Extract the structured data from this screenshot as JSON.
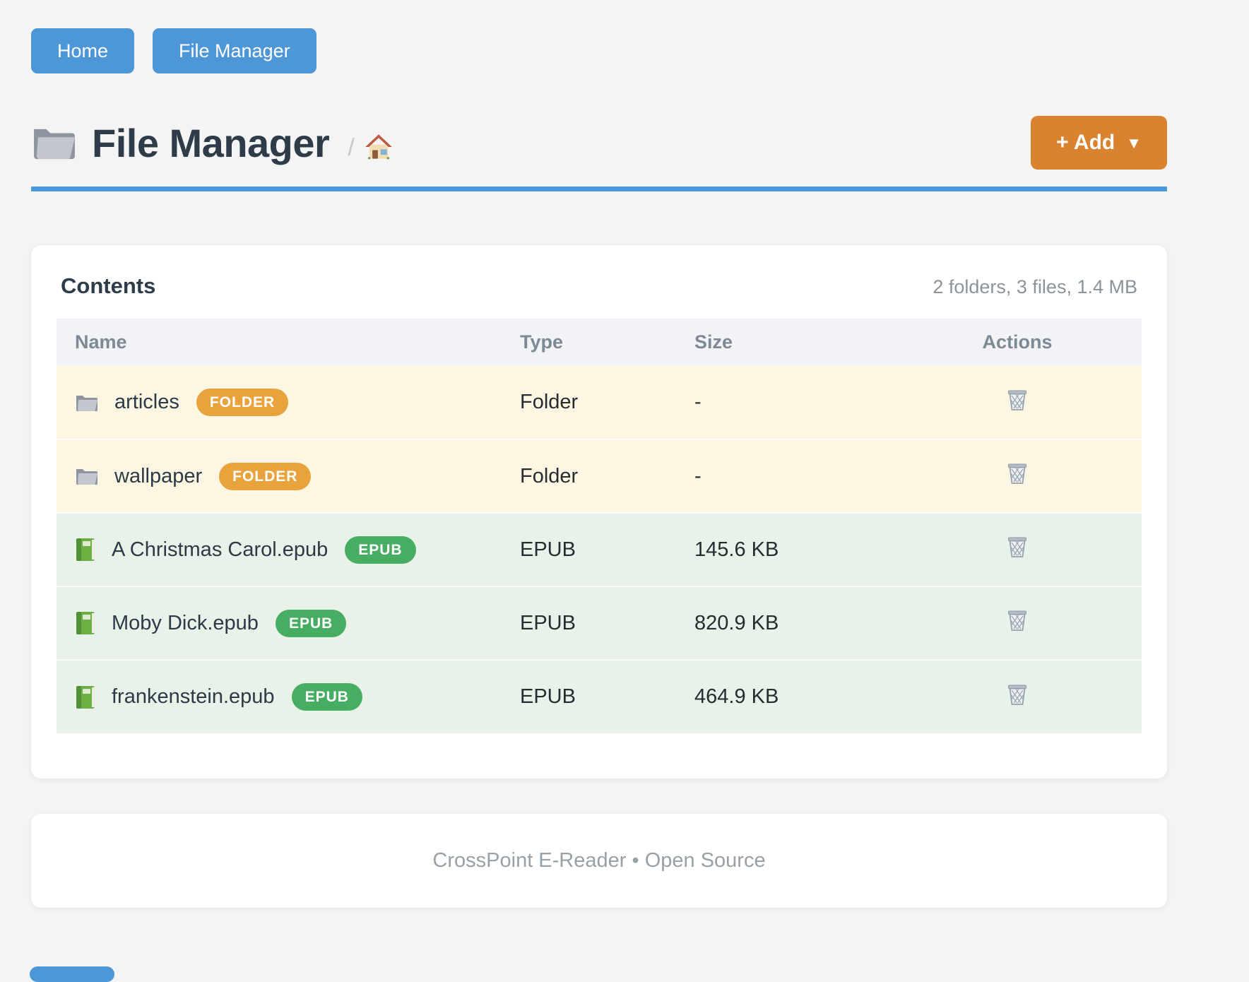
{
  "nav": {
    "home_label": "Home",
    "file_manager_label": "File Manager"
  },
  "header": {
    "title": "File Manager",
    "title_icon": "folder-icon",
    "breadcrumb_separator": "/",
    "breadcrumb_home_icon": "house-icon",
    "add_button_label": "+ Add",
    "add_button_caret": "▼"
  },
  "contents": {
    "heading": "Contents",
    "summary": "2 folders, 3 files, 1.4 MB",
    "columns": [
      "Name",
      "Type",
      "Size",
      "Actions"
    ],
    "rows": [
      {
        "name": "articles",
        "kind": "folder",
        "icon": "folder-icon",
        "badge": "FOLDER",
        "type": "Folder",
        "size": "-",
        "action_icon": "trash-icon"
      },
      {
        "name": "wallpaper",
        "kind": "folder",
        "icon": "folder-icon",
        "badge": "FOLDER",
        "type": "Folder",
        "size": "-",
        "action_icon": "trash-icon"
      },
      {
        "name": "A Christmas Carol.epub",
        "kind": "epub",
        "icon": "book-icon",
        "badge": "EPUB",
        "type": "EPUB",
        "size": "145.6 KB",
        "action_icon": "trash-icon"
      },
      {
        "name": "Moby Dick.epub",
        "kind": "epub",
        "icon": "book-icon",
        "badge": "EPUB",
        "type": "EPUB",
        "size": "820.9 KB",
        "action_icon": "trash-icon"
      },
      {
        "name": "frankenstein.epub",
        "kind": "epub",
        "icon": "book-icon",
        "badge": "EPUB",
        "type": "EPUB",
        "size": "464.9 KB",
        "action_icon": "trash-icon"
      }
    ]
  },
  "footer": {
    "text": "CrossPoint E-Reader • Open Source"
  },
  "colors": {
    "nav_blue": "#4d96d8",
    "divider_blue": "#4d96d8",
    "add_orange": "#d9822f",
    "folder_badge_orange": "#e8a33c",
    "epub_badge_green": "#47ad63",
    "folder_row_bg": "#fdf6e2",
    "epub_row_bg": "#e8f2e9",
    "title_color": "#2e3b49"
  }
}
